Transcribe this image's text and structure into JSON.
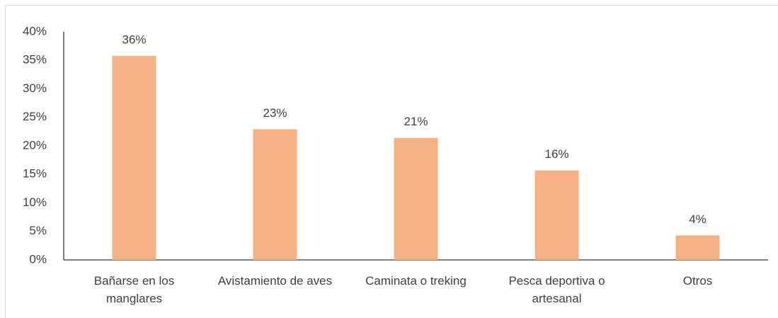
{
  "chart_data": {
    "type": "bar",
    "categories": [
      "Bañarse en los manglares",
      "Avistamiento de aves",
      "Caminata o treking",
      "Pesca deportiva o artesanal",
      "Otros"
    ],
    "values": [
      35.8,
      22.9,
      21.4,
      15.7,
      4.3
    ],
    "value_labels": [
      "36%",
      "23%",
      "21%",
      "16%",
      "4%"
    ],
    "color": "#f4b183",
    "ylim": [
      0,
      40
    ],
    "yticks": [
      {
        "value": 0,
        "label": "0%"
      },
      {
        "value": 5,
        "label": "5%"
      },
      {
        "value": 10,
        "label": "10%"
      },
      {
        "value": 15,
        "label": "15%"
      },
      {
        "value": 20,
        "label": "20%"
      },
      {
        "value": 25,
        "label": "25%"
      },
      {
        "value": 30,
        "label": "30%"
      },
      {
        "value": 35,
        "label": "35%"
      },
      {
        "value": 40,
        "label": "40%"
      }
    ],
    "grid": false
  }
}
